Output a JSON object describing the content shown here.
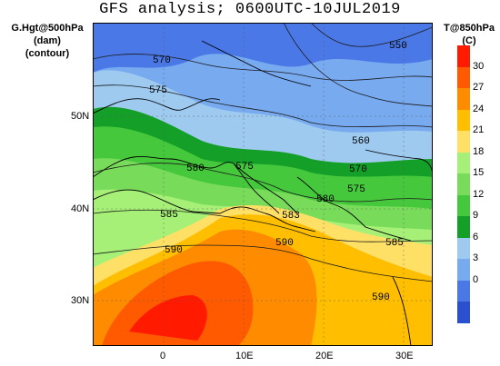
{
  "title": "GFS analysis; 0600UTC-10JUL2019",
  "left_labels": [
    "G.Hgt@500hPa",
    "(dam)",
    "(contour)"
  ],
  "right_labels": [
    "T@850hPa",
    "(C)"
  ],
  "lat_ticks": [
    "50N",
    "40N",
    "30N"
  ],
  "lon_ticks": [
    "0",
    "10E",
    "20E",
    "30E"
  ],
  "colorbar": {
    "labels": [
      "30",
      "27",
      "24",
      "21",
      "18",
      "15",
      "12",
      "9",
      "6",
      "3",
      "0"
    ],
    "colors": [
      "#ff1a00",
      "#ff5a00",
      "#ff8c00",
      "#ffbf00",
      "#ffe066",
      "#a6f078",
      "#78dc5a",
      "#46c83c",
      "#14a028",
      "#9ecaf0",
      "#78aaf0",
      "#4a78e6",
      "#2a50d0"
    ]
  },
  "contour_labels": [
    "570",
    "575",
    "550",
    "560",
    "580",
    "575",
    "570",
    "575",
    "580",
    "585",
    "583",
    "590",
    "590",
    "585",
    "590"
  ],
  "colors": {
    "ocean_base": "#2a50d0",
    "coast": "#000000",
    "contour": "#1a1a1a"
  }
}
